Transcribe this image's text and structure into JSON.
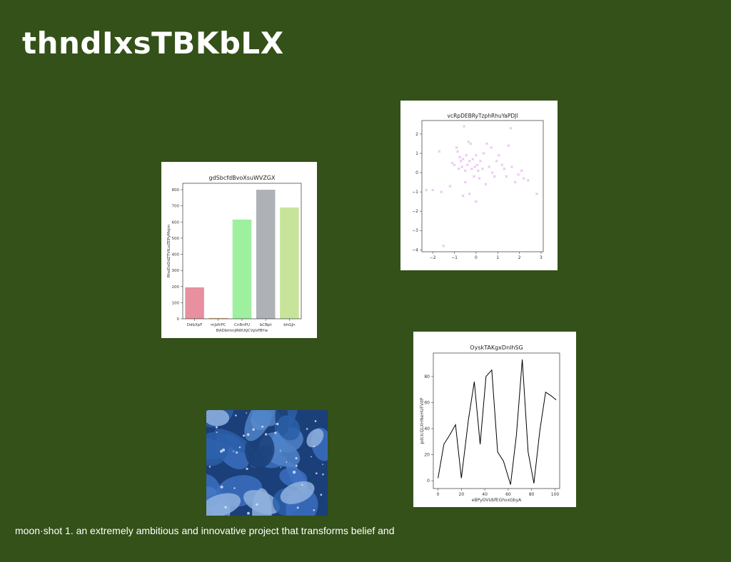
{
  "slide": {
    "title": "thndIxsTBKbLX",
    "caption": "moon·shot 1. an extremely ambitious and innovative project that transforms belief and"
  },
  "chart_data": [
    {
      "type": "bar",
      "title": "gdSbcfdBvoXsuWVZGX",
      "xlabel": "BADblmnjRWUtJCVpVfBYw",
      "ylabel": "RhoDxDdZTVtLoZEPyMojm",
      "categories": [
        "DdbXpF",
        "mJzfrPC",
        "CnRnPU",
        "bCBpt",
        "bhGJn"
      ],
      "values": [
        195,
        5,
        615,
        800,
        690
      ],
      "colors": [
        "#e8909f",
        "#e0b080",
        "#9ef09e",
        "#aeb2b6",
        "#c8e49a"
      ],
      "yticks": [
        0,
        100,
        200,
        300,
        400,
        500,
        600,
        700,
        800
      ],
      "ylim": [
        0,
        840
      ]
    },
    {
      "type": "scatter",
      "title": "vcRpDEBRyTzphRhuYaPDJl",
      "xlabel": "",
      "ylabel": "",
      "marker_color": "#e6b3f0",
      "xlim": [
        -2.5,
        3.1
      ],
      "ylim": [
        -4.1,
        2.7
      ],
      "xticks": [
        -2,
        -1,
        0,
        1,
        2,
        3
      ],
      "yticks": [
        -4,
        -3,
        -2,
        -1,
        0,
        1,
        2
      ],
      "points": [
        [
          -2.3,
          -0.9
        ],
        [
          -2.0,
          -0.9
        ],
        [
          -1.7,
          1.1
        ],
        [
          -1.6,
          -1.0
        ],
        [
          -1.5,
          -3.8
        ],
        [
          -1.2,
          -0.7
        ],
        [
          -1.1,
          0.5
        ],
        [
          -1.0,
          0.4
        ],
        [
          -0.9,
          1.3
        ],
        [
          -0.85,
          1.1
        ],
        [
          -0.8,
          0.2
        ],
        [
          -0.75,
          0.8
        ],
        [
          -0.7,
          0.6
        ],
        [
          -0.65,
          0.3
        ],
        [
          -0.6,
          0.7
        ],
        [
          -0.6,
          -1.2
        ],
        [
          -0.55,
          2.4
        ],
        [
          -0.5,
          0.1
        ],
        [
          -0.5,
          -0.5
        ],
        [
          -0.45,
          0.9
        ],
        [
          -0.4,
          0.4
        ],
        [
          -0.35,
          1.6
        ],
        [
          -0.3,
          0.6
        ],
        [
          -0.3,
          -1.1
        ],
        [
          -0.25,
          1.5
        ],
        [
          -0.2,
          0.2
        ],
        [
          -0.15,
          0.7
        ],
        [
          -0.1,
          -0.2
        ],
        [
          -0.05,
          0.3
        ],
        [
          0.0,
          -1.5
        ],
        [
          0.0,
          0.9
        ],
        [
          0.05,
          0.4
        ],
        [
          0.1,
          0.1
        ],
        [
          0.15,
          -0.3
        ],
        [
          0.2,
          0.6
        ],
        [
          0.3,
          0.2
        ],
        [
          0.35,
          1.0
        ],
        [
          0.45,
          -0.6
        ],
        [
          0.5,
          1.5
        ],
        [
          0.6,
          0.3
        ],
        [
          0.7,
          1.3
        ],
        [
          0.75,
          0.0
        ],
        [
          0.85,
          -0.2
        ],
        [
          0.95,
          0.6
        ],
        [
          1.05,
          0.9
        ],
        [
          1.2,
          0.4
        ],
        [
          1.3,
          0.2
        ],
        [
          1.4,
          -0.2
        ],
        [
          1.5,
          1.4
        ],
        [
          1.6,
          2.3
        ],
        [
          1.65,
          0.3
        ],
        [
          1.8,
          -0.5
        ],
        [
          1.95,
          -0.1
        ],
        [
          2.1,
          0.1
        ],
        [
          2.2,
          -0.3
        ],
        [
          2.4,
          -0.4
        ],
        [
          2.8,
          -1.1
        ]
      ]
    },
    {
      "type": "line",
      "title": "OyskTAKgxDnlhSG",
      "xlabel": "eBPyOVUbfEGhvxGbyA",
      "ylabel": "pdcIcQLXHNeHUFVdP",
      "line_color": "#000000",
      "xlim": [
        -4,
        104
      ],
      "ylim": [
        -6,
        98
      ],
      "xticks": [
        0,
        20,
        40,
        60,
        80,
        100
      ],
      "yticks": [
        0,
        20,
        40,
        60,
        80
      ],
      "x": [
        0,
        5,
        10,
        15,
        20,
        26,
        31,
        36,
        41,
        46,
        51,
        56,
        62,
        67,
        72,
        77,
        82,
        87,
        92,
        97,
        101
      ],
      "y": [
        2,
        28,
        35,
        43,
        2,
        47,
        76,
        28,
        80,
        85,
        22,
        15,
        -3,
        35,
        93,
        22,
        -2,
        38,
        68,
        65,
        62
      ]
    }
  ],
  "photo": {
    "subject": "blue leaves with water droplets",
    "colors": [
      "#2a5fa8",
      "#4f82c8",
      "#1b3f78",
      "#8fb1de",
      "#3b6fbf"
    ]
  }
}
